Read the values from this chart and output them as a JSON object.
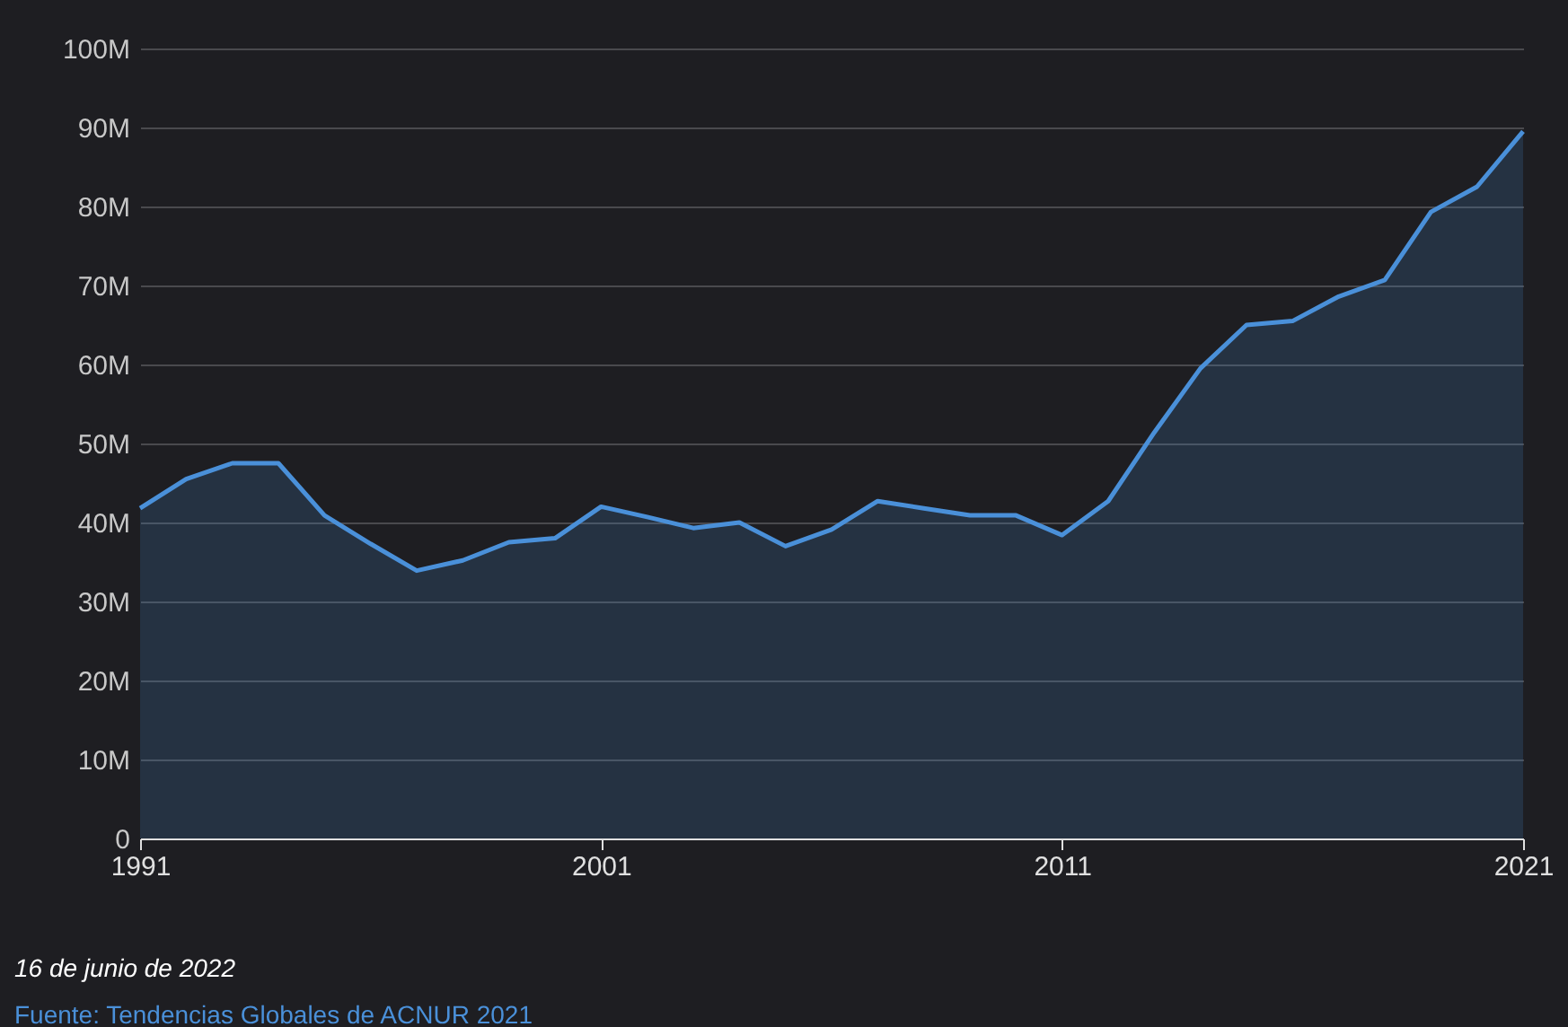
{
  "chart_data": {
    "type": "area",
    "x": [
      1991,
      1992,
      1993,
      1994,
      1995,
      1996,
      1997,
      1998,
      1999,
      2000,
      2001,
      2002,
      2003,
      2004,
      2005,
      2006,
      2007,
      2008,
      2009,
      2010,
      2011,
      2012,
      2013,
      2014,
      2015,
      2016,
      2017,
      2018,
      2019,
      2020,
      2021
    ],
    "series": [
      {
        "color": "#4a90d9",
        "values": [
          41.8,
          45.5,
          47.5,
          47.5,
          40.9,
          37.3,
          33.9,
          35.2,
          37.5,
          38.0,
          42.0,
          40.7,
          39.3,
          40.0,
          37.0,
          39.1,
          42.7,
          41.8,
          40.9,
          40.9,
          38.4,
          42.7,
          51.4,
          59.5,
          65.0,
          65.5,
          68.6,
          70.7,
          79.3,
          82.5,
          89.5
        ]
      }
    ],
    "xlim": [
      1991,
      2021
    ],
    "xticks": [
      1991,
      2001,
      2011,
      2021
    ],
    "ylim": [
      0,
      100
    ],
    "yticks": [
      0,
      {
        "value": 10,
        "label": "10M"
      },
      {
        "value": 20,
        "label": "20M"
      },
      {
        "value": 30,
        "label": "30M"
      },
      {
        "value": 40,
        "label": "40M"
      },
      {
        "value": 50,
        "label": "50M"
      },
      {
        "value": 60,
        "label": "60M"
      },
      {
        "value": 70,
        "label": "70M"
      },
      {
        "value": 80,
        "label": "80M"
      },
      {
        "value": 90,
        "label": "90M"
      },
      {
        "value": 100,
        "label": "100M"
      }
    ],
    "grid": "y",
    "annotations": [
      "16 de junio de 2022",
      "Fuente: Tendencias Globales de ACNUR 2021"
    ]
  }
}
